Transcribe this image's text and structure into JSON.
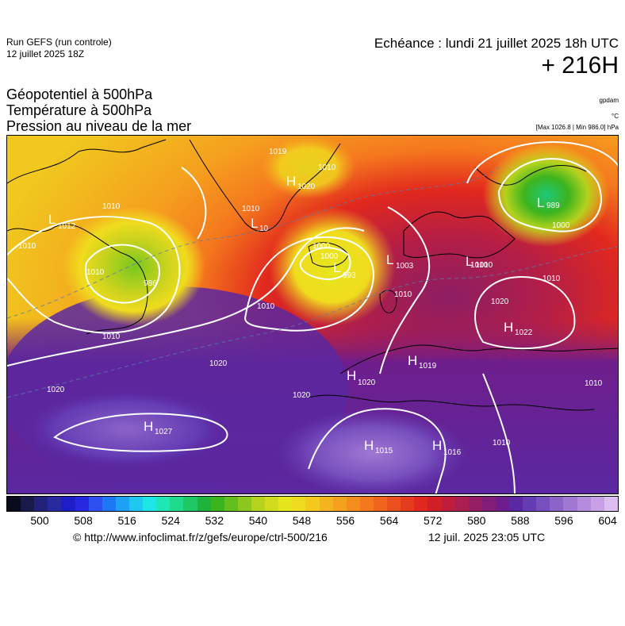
{
  "header": {
    "run_name": "Run GEFS (run controle)",
    "run_date": "12 juillet 2025 18Z",
    "valid_time": "Echéance : lundi 21 juillet 2025 18h UTC",
    "lead_time": "+ 216H"
  },
  "titles": {
    "line1": "Géopotentiel à 500hPa",
    "line2": "Température à 500hPa",
    "line3": "Pression au niveau de la mer"
  },
  "units": {
    "geopotential": "gpdam",
    "temperature": "°C",
    "pressure_range": "[Max 1026.8 | Min 986.0] hPa"
  },
  "pressure_centers": [
    {
      "type": "H",
      "value": "1019"
    },
    {
      "type": "H",
      "value": "1020"
    },
    {
      "type": "L",
      "value": "1012"
    },
    {
      "type": "L",
      "value": "10"
    },
    {
      "type": "L",
      "value": "993"
    },
    {
      "type": "L",
      "value": "1003"
    },
    {
      "type": "L",
      "value": "1010"
    },
    {
      "type": "L",
      "value": "989"
    },
    {
      "type": "L",
      "value": "986"
    },
    {
      "type": "H",
      "value": "1022"
    },
    {
      "type": "H",
      "value": "1019"
    },
    {
      "type": "H",
      "value": "1020"
    },
    {
      "type": "H",
      "value": "1027"
    },
    {
      "type": "H",
      "value": "1015"
    },
    {
      "type": "H",
      "value": "1016"
    }
  ],
  "isobar_labels": [
    "1010",
    "1010",
    "1010",
    "1010",
    "1010",
    "1010",
    "1010",
    "1010",
    "1000",
    "1000",
    "1020",
    "1020",
    "1020",
    "1020",
    "1010",
    "1010",
    "1010",
    "1010",
    "1000"
  ],
  "colorbar": {
    "ticks": [
      "500",
      "508",
      "516",
      "524",
      "532",
      "540",
      "548",
      "556",
      "564",
      "572",
      "580",
      "588",
      "596",
      "604"
    ],
    "colors": [
      "#0b0b1e",
      "#1a1a4a",
      "#22227a",
      "#2a2aa0",
      "#1e1ec8",
      "#2828e0",
      "#2e50f0",
      "#1e78f5",
      "#1ea0f5",
      "#1ec8f0",
      "#1ee6e6",
      "#1ee6b4",
      "#1edc8c",
      "#1ec864",
      "#1eb43c",
      "#3cb41e",
      "#64be1e",
      "#8cc81e",
      "#b4d21e",
      "#d2dc1e",
      "#e6e61e",
      "#f0dc1e",
      "#f5c81e",
      "#f5b41e",
      "#f5a01e",
      "#f58c1e",
      "#f5781e",
      "#f0641e",
      "#eb501e",
      "#e63c1e",
      "#e1281e",
      "#d21e28",
      "#be1e3c",
      "#aa1e50",
      "#961e64",
      "#821e78",
      "#6e1e8c",
      "#5a28a0",
      "#643cb4",
      "#7850be",
      "#8c64c8",
      "#a078d2",
      "#b48cdc",
      "#c8a0e6",
      "#dcbef0"
    ]
  },
  "footer": {
    "credit": "© http://www.infoclimat.fr/z/gefs/europe/ctrl-500/216",
    "created": "12 juil. 2025 23:05 UTC"
  }
}
